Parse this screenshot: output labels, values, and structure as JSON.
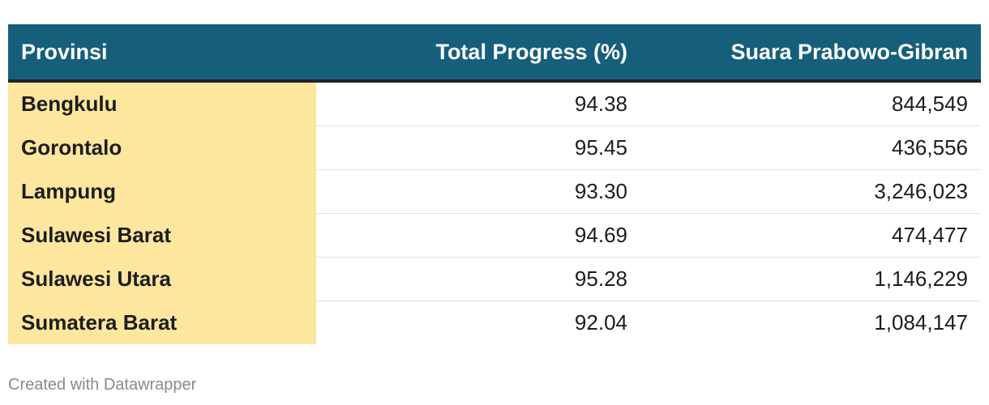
{
  "table": {
    "headers": [
      "Provinsi",
      "Total Progress (%)",
      "Suara Prabowo-Gibran"
    ],
    "rows": [
      {
        "provinsi": "Bengkulu",
        "progress": "94.38",
        "suara": "844,549"
      },
      {
        "provinsi": "Gorontalo",
        "progress": "95.45",
        "suara": "436,556"
      },
      {
        "provinsi": "Lampung",
        "progress": "93.30",
        "suara": "3,246,023"
      },
      {
        "provinsi": "Sulawesi Barat",
        "progress": "94.69",
        "suara": "474,477"
      },
      {
        "provinsi": "Sulawesi Utara",
        "progress": "95.28",
        "suara": "1,146,229"
      },
      {
        "provinsi": "Sumatera Barat",
        "progress": "92.04",
        "suara": "1,084,147"
      }
    ]
  },
  "footer": "Created with Datawrapper",
  "colors": {
    "header_bg": "#165f7b",
    "header_text": "#ffffff",
    "highlight_column": "#fde69d"
  },
  "chart_data": {
    "type": "table",
    "columns": [
      "Provinsi",
      "Total Progress (%)",
      "Suara Prabowo-Gibran"
    ],
    "rows": [
      [
        "Bengkulu",
        94.38,
        844549
      ],
      [
        "Gorontalo",
        95.45,
        436556
      ],
      [
        "Lampung",
        93.3,
        3246023
      ],
      [
        "Sulawesi Barat",
        94.69,
        474477
      ],
      [
        "Sulawesi Utara",
        95.28,
        1146229
      ],
      [
        "Sumatera Barat",
        92.04,
        1084147
      ]
    ]
  }
}
